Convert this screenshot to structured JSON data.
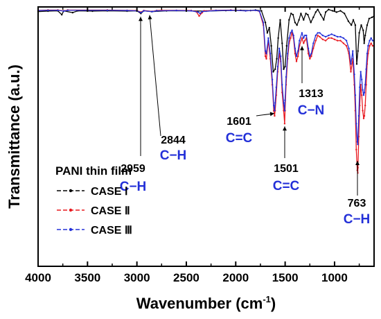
{
  "chart_data": {
    "type": "line",
    "title": "",
    "xlabel": "Wavenumber (cm",
    "xlabel_sup": "-1",
    "xlabel_close": ")",
    "ylabel": "Transmittance (a.u.)",
    "x_reversed": true,
    "xlim": [
      4000,
      600
    ],
    "ylim": [
      0,
      1
    ],
    "x_ticks": [
      4000,
      3500,
      3000,
      2500,
      2000,
      1500,
      1000
    ],
    "y_ticks_shown": false,
    "grid": false,
    "legend": {
      "placement": "bottom-left",
      "title": "PANI thin film",
      "entries": [
        "CASE Ⅰ",
        "CASE Ⅱ",
        "CASE Ⅲ"
      ]
    },
    "series": [
      {
        "name": "CASE Ⅰ",
        "color": "#000000",
        "points": [
          [
            4000,
            0.982
          ],
          [
            3900,
            0.984
          ],
          [
            3800,
            0.985
          ],
          [
            3760,
            0.97
          ],
          [
            3740,
            0.985
          ],
          [
            3650,
            0.978
          ],
          [
            3600,
            0.985
          ],
          [
            3450,
            0.984
          ],
          [
            3300,
            0.985
          ],
          [
            3100,
            0.984
          ],
          [
            3000,
            0.985
          ],
          [
            2960,
            0.975
          ],
          [
            2930,
            0.985
          ],
          [
            2850,
            0.982
          ],
          [
            2700,
            0.985
          ],
          [
            2500,
            0.985
          ],
          [
            2300,
            0.984
          ],
          [
            2100,
            0.986
          ],
          [
            1950,
            0.987
          ],
          [
            1850,
            0.986
          ],
          [
            1800,
            0.988
          ],
          [
            1740,
            0.985
          ],
          [
            1700,
            0.94
          ],
          [
            1680,
            0.9
          ],
          [
            1660,
            0.92
          ],
          [
            1640,
            0.85
          ],
          [
            1620,
            0.75
          ],
          [
            1601,
            0.76
          ],
          [
            1585,
            0.8
          ],
          [
            1570,
            0.88
          ],
          [
            1550,
            0.95
          ],
          [
            1530,
            0.86
          ],
          [
            1515,
            0.76
          ],
          [
            1501,
            0.77
          ],
          [
            1485,
            0.85
          ],
          [
            1460,
            0.95
          ],
          [
            1440,
            0.975
          ],
          [
            1420,
            0.97
          ],
          [
            1400,
            0.94
          ],
          [
            1380,
            0.93
          ],
          [
            1360,
            0.95
          ],
          [
            1340,
            0.975
          ],
          [
            1313,
            0.95
          ],
          [
            1290,
            0.975
          ],
          [
            1270,
            0.97
          ],
          [
            1240,
            0.94
          ],
          [
            1215,
            0.96
          ],
          [
            1190,
            0.98
          ],
          [
            1170,
            0.99
          ],
          [
            1140,
            0.97
          ],
          [
            1110,
            0.95
          ],
          [
            1090,
            0.98
          ],
          [
            1060,
            0.99
          ],
          [
            1020,
            0.985
          ],
          [
            980,
            0.98
          ],
          [
            940,
            0.985
          ],
          [
            900,
            0.975
          ],
          [
            860,
            0.945
          ],
          [
            830,
            0.93
          ],
          [
            810,
            0.95
          ],
          [
            790,
            0.93
          ],
          [
            775,
            0.78
          ],
          [
            763,
            0.83
          ],
          [
            750,
            0.9
          ],
          [
            730,
            0.93
          ],
          [
            710,
            0.91
          ],
          [
            700,
            0.86
          ],
          [
            690,
            0.89
          ],
          [
            670,
            0.93
          ],
          [
            650,
            0.955
          ],
          [
            620,
            0.96
          ],
          [
            600,
            0.965
          ]
        ]
      },
      {
        "name": "CASE Ⅱ",
        "color": "#e8191f",
        "points": [
          [
            4000,
            0.987
          ],
          [
            3900,
            0.988
          ],
          [
            3800,
            0.988
          ],
          [
            3740,
            0.985
          ],
          [
            3700,
            0.988
          ],
          [
            3500,
            0.988
          ],
          [
            3300,
            0.988
          ],
          [
            3100,
            0.987
          ],
          [
            3000,
            0.986
          ],
          [
            2959,
            0.98
          ],
          [
            2930,
            0.986
          ],
          [
            2844,
            0.983
          ],
          [
            2800,
            0.986
          ],
          [
            2750,
            0.987
          ],
          [
            2600,
            0.987
          ],
          [
            2450,
            0.986
          ],
          [
            2400,
            0.982
          ],
          [
            2370,
            0.965
          ],
          [
            2340,
            0.978
          ],
          [
            2320,
            0.985
          ],
          [
            2200,
            0.987
          ],
          [
            2050,
            0.988
          ],
          [
            1900,
            0.985
          ],
          [
            1800,
            0.987
          ],
          [
            1760,
            0.983
          ],
          [
            1720,
            0.93
          ],
          [
            1700,
            0.81
          ],
          [
            1690,
            0.8
          ],
          [
            1670,
            0.87
          ],
          [
            1650,
            0.8
          ],
          [
            1630,
            0.7
          ],
          [
            1615,
            0.6
          ],
          [
            1607,
            0.58
          ],
          [
            1601,
            0.6
          ],
          [
            1590,
            0.66
          ],
          [
            1575,
            0.75
          ],
          [
            1560,
            0.82
          ],
          [
            1545,
            0.79
          ],
          [
            1530,
            0.67
          ],
          [
            1515,
            0.6
          ],
          [
            1505,
            0.55
          ],
          [
            1501,
            0.6
          ],
          [
            1490,
            0.7
          ],
          [
            1475,
            0.8
          ],
          [
            1460,
            0.86
          ],
          [
            1445,
            0.88
          ],
          [
            1430,
            0.9
          ],
          [
            1415,
            0.88
          ],
          [
            1400,
            0.82
          ],
          [
            1385,
            0.79
          ],
          [
            1370,
            0.81
          ],
          [
            1355,
            0.85
          ],
          [
            1330,
            0.88
          ],
          [
            1313,
            0.86
          ],
          [
            1300,
            0.87
          ],
          [
            1285,
            0.88
          ],
          [
            1265,
            0.82
          ],
          [
            1250,
            0.8
          ],
          [
            1235,
            0.81
          ],
          [
            1215,
            0.84
          ],
          [
            1190,
            0.87
          ],
          [
            1170,
            0.89
          ],
          [
            1150,
            0.885
          ],
          [
            1120,
            0.875
          ],
          [
            1090,
            0.87
          ],
          [
            1060,
            0.88
          ],
          [
            1030,
            0.88
          ],
          [
            1000,
            0.875
          ],
          [
            970,
            0.87
          ],
          [
            940,
            0.87
          ],
          [
            910,
            0.86
          ],
          [
            880,
            0.85
          ],
          [
            855,
            0.82
          ],
          [
            835,
            0.75
          ],
          [
            815,
            0.8
          ],
          [
            800,
            0.7
          ],
          [
            790,
            0.6
          ],
          [
            780,
            0.45
          ],
          [
            770,
            0.37
          ],
          [
            765,
            0.36
          ],
          [
            763,
            0.38
          ],
          [
            755,
            0.5
          ],
          [
            745,
            0.62
          ],
          [
            735,
            0.7
          ],
          [
            725,
            0.66
          ],
          [
            715,
            0.6
          ],
          [
            705,
            0.57
          ],
          [
            698,
            0.58
          ],
          [
            690,
            0.62
          ],
          [
            680,
            0.7
          ],
          [
            670,
            0.78
          ],
          [
            660,
            0.82
          ],
          [
            645,
            0.85
          ],
          [
            630,
            0.86
          ],
          [
            615,
            0.85
          ],
          [
            600,
            0.85
          ]
        ]
      },
      {
        "name": "CASE Ⅲ",
        "color": "#2330d8",
        "points": [
          [
            4000,
            0.986
          ],
          [
            3900,
            0.987
          ],
          [
            3800,
            0.987
          ],
          [
            3740,
            0.984
          ],
          [
            3700,
            0.987
          ],
          [
            3500,
            0.987
          ],
          [
            3300,
            0.987
          ],
          [
            3100,
            0.986
          ],
          [
            3000,
            0.985
          ],
          [
            2959,
            0.978
          ],
          [
            2930,
            0.985
          ],
          [
            2844,
            0.982
          ],
          [
            2800,
            0.985
          ],
          [
            2600,
            0.986
          ],
          [
            2450,
            0.985
          ],
          [
            2380,
            0.98
          ],
          [
            2360,
            0.975
          ],
          [
            2340,
            0.982
          ],
          [
            2200,
            0.986
          ],
          [
            2050,
            0.987
          ],
          [
            1900,
            0.985
          ],
          [
            1800,
            0.987
          ],
          [
            1760,
            0.984
          ],
          [
            1720,
            0.94
          ],
          [
            1700,
            0.83
          ],
          [
            1690,
            0.82
          ],
          [
            1670,
            0.88
          ],
          [
            1650,
            0.82
          ],
          [
            1630,
            0.72
          ],
          [
            1615,
            0.62
          ],
          [
            1607,
            0.6
          ],
          [
            1601,
            0.63
          ],
          [
            1590,
            0.69
          ],
          [
            1575,
            0.77
          ],
          [
            1560,
            0.84
          ],
          [
            1545,
            0.81
          ],
          [
            1530,
            0.7
          ],
          [
            1515,
            0.63
          ],
          [
            1505,
            0.6
          ],
          [
            1501,
            0.64
          ],
          [
            1490,
            0.73
          ],
          [
            1475,
            0.82
          ],
          [
            1460,
            0.88
          ],
          [
            1445,
            0.9
          ],
          [
            1430,
            0.91
          ],
          [
            1415,
            0.89
          ],
          [
            1400,
            0.84
          ],
          [
            1385,
            0.81
          ],
          [
            1370,
            0.83
          ],
          [
            1355,
            0.87
          ],
          [
            1330,
            0.9
          ],
          [
            1313,
            0.88
          ],
          [
            1300,
            0.89
          ],
          [
            1285,
            0.89
          ],
          [
            1265,
            0.84
          ],
          [
            1250,
            0.81
          ],
          [
            1235,
            0.82
          ],
          [
            1215,
            0.86
          ],
          [
            1190,
            0.89
          ],
          [
            1170,
            0.9
          ],
          [
            1150,
            0.9
          ],
          [
            1120,
            0.89
          ],
          [
            1090,
            0.885
          ],
          [
            1060,
            0.89
          ],
          [
            1030,
            0.895
          ],
          [
            1000,
            0.89
          ],
          [
            970,
            0.885
          ],
          [
            940,
            0.885
          ],
          [
            910,
            0.88
          ],
          [
            880,
            0.87
          ],
          [
            855,
            0.84
          ],
          [
            835,
            0.78
          ],
          [
            815,
            0.83
          ],
          [
            800,
            0.74
          ],
          [
            790,
            0.66
          ],
          [
            780,
            0.55
          ],
          [
            770,
            0.48
          ],
          [
            765,
            0.47
          ],
          [
            763,
            0.49
          ],
          [
            755,
            0.58
          ],
          [
            745,
            0.69
          ],
          [
            735,
            0.75
          ],
          [
            725,
            0.72
          ],
          [
            715,
            0.68
          ],
          [
            705,
            0.66
          ],
          [
            698,
            0.67
          ],
          [
            690,
            0.7
          ],
          [
            680,
            0.76
          ],
          [
            670,
            0.82
          ],
          [
            660,
            0.85
          ],
          [
            645,
            0.87
          ],
          [
            630,
            0.88
          ],
          [
            615,
            0.87
          ],
          [
            600,
            0.87
          ]
        ]
      }
    ],
    "annotations": [
      {
        "number": "2959",
        "bond": "C−H",
        "x": 2959
      },
      {
        "number": "2844",
        "bond": "C−H",
        "x": 2844
      },
      {
        "number": "1601",
        "bond": "C=C",
        "x": 1601
      },
      {
        "number": "1501",
        "bond": "C=C",
        "x": 1501
      },
      {
        "number": "1313",
        "bond": "C−N",
        "x": 1313
      },
      {
        "number": "763",
        "bond": "C−H",
        "x": 763
      }
    ]
  }
}
